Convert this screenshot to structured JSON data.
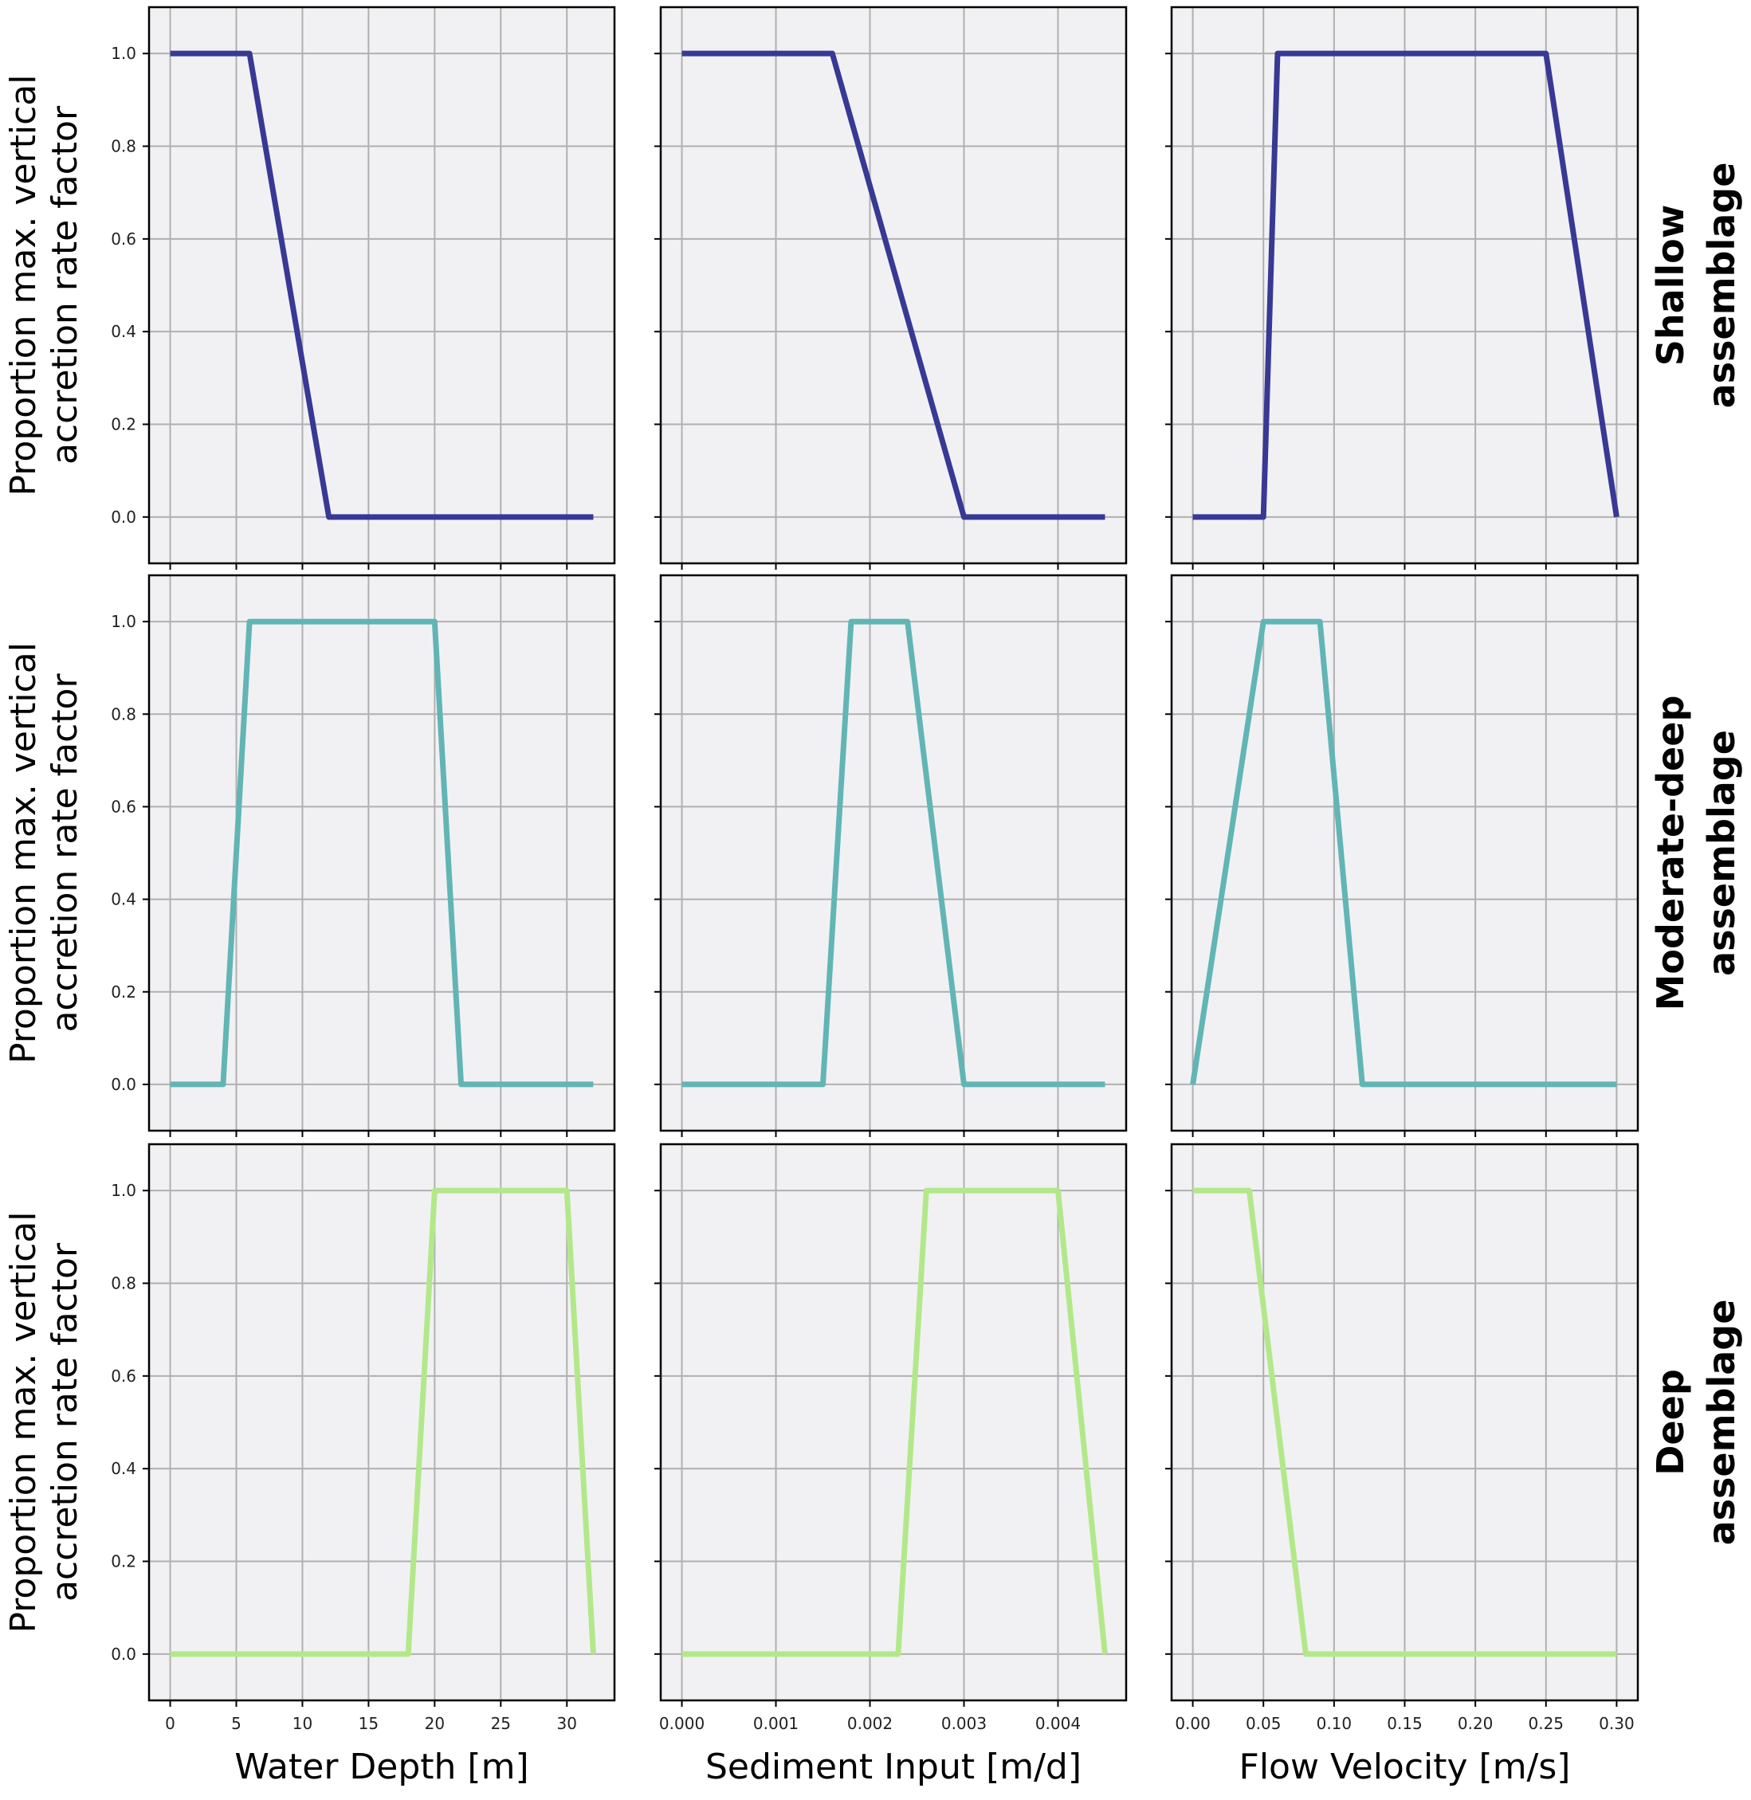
{
  "chart_data": [
    {
      "type": "line",
      "row": "Shallow assemblage",
      "xlabel": "Water Depth [m]",
      "ylabel": "Proportion max. vertical accretion rate factor",
      "color": "#383895",
      "x": [
        0,
        6,
        12,
        32
      ],
      "y": [
        1,
        1,
        0,
        0
      ],
      "xlim": [
        -1.6,
        33.6
      ],
      "ylim": [
        -0.1,
        1.1
      ]
    },
    {
      "type": "line",
      "row": "Shallow assemblage",
      "xlabel": "Sediment Input [m/d]",
      "color": "#383895",
      "x": [
        0,
        0.0016,
        0.003,
        0.0045
      ],
      "y": [
        1,
        1,
        0,
        0
      ],
      "xlim": [
        -0.000225,
        0.004725
      ],
      "ylim": [
        -0.1,
        1.1
      ]
    },
    {
      "type": "line",
      "row": "Shallow assemblage",
      "xlabel": "Flow Velocity [m/s]",
      "color": "#383895",
      "x": [
        0,
        0.05,
        0.06,
        0.25,
        0.3
      ],
      "y": [
        0,
        0,
        1,
        1,
        0
      ],
      "xlim": [
        -0.015,
        0.315
      ],
      "ylim": [
        -0.1,
        1.1
      ]
    },
    {
      "type": "line",
      "row": "Moderate-deep assemblage",
      "xlabel": "Water Depth [m]",
      "color": "#62b5b5",
      "x": [
        0,
        4,
        6,
        20,
        22,
        32
      ],
      "y": [
        0,
        0,
        1,
        1,
        0,
        0
      ],
      "xlim": [
        -1.6,
        33.6
      ],
      "ylim": [
        -0.1,
        1.1
      ]
    },
    {
      "type": "line",
      "row": "Moderate-deep assemblage",
      "xlabel": "Sediment Input [m/d]",
      "color": "#62b5b5",
      "x": [
        0,
        0.0015,
        0.0018,
        0.0024,
        0.003,
        0.0045
      ],
      "y": [
        0,
        0,
        1,
        1,
        0,
        0
      ],
      "xlim": [
        -0.000225,
        0.004725
      ],
      "ylim": [
        -0.1,
        1.1
      ]
    },
    {
      "type": "line",
      "row": "Moderate-deep assemblage",
      "xlabel": "Flow Velocity [m/s]",
      "color": "#62b5b5",
      "x": [
        0,
        0.05,
        0.09,
        0.12,
        0.3
      ],
      "y": [
        0,
        1,
        1,
        0,
        0
      ],
      "xlim": [
        -0.015,
        0.315
      ],
      "ylim": [
        -0.1,
        1.1
      ]
    },
    {
      "type": "line",
      "row": "Deep assemblage",
      "xlabel": "Water Depth [m]",
      "color": "#b3e88a",
      "x": [
        0,
        18,
        20,
        30,
        32
      ],
      "y": [
        0,
        0,
        1,
        1,
        0
      ],
      "xlim": [
        -1.6,
        33.6
      ],
      "ylim": [
        -0.1,
        1.1
      ]
    },
    {
      "type": "line",
      "row": "Deep assemblage",
      "xlabel": "Sediment Input [m/d]",
      "color": "#b3e88a",
      "x": [
        0,
        0.0023,
        0.0026,
        0.004,
        0.0045
      ],
      "y": [
        0,
        0,
        1,
        1,
        0
      ],
      "xlim": [
        -0.000225,
        0.004725
      ],
      "ylim": [
        -0.1,
        1.1
      ]
    },
    {
      "type": "line",
      "row": "Deep assemblage",
      "xlabel": "Flow Velocity [m/s]",
      "color": "#b3e88a",
      "x": [
        0,
        0.04,
        0.08,
        0.3
      ],
      "y": [
        1,
        1,
        0,
        0
      ],
      "xlim": [
        -0.015,
        0.315
      ],
      "ylim": [
        -0.1,
        1.1
      ]
    }
  ],
  "ylabel_lines": [
    "Proportion max. vertical",
    "accretion rate factor"
  ],
  "row_labels": [
    [
      "Shallow",
      "assemblage"
    ],
    [
      "Moderate-deep",
      "assemblage"
    ],
    [
      "Deep",
      "assemblage"
    ]
  ],
  "xlabels": [
    "Water Depth [m]",
    "Sediment Input [m/d]",
    "Flow Velocity [m/s]"
  ],
  "y_ticks": [
    "0.0",
    "0.2",
    "0.4",
    "0.6",
    "0.8",
    "1.0"
  ],
  "x_ticks": [
    [
      "0",
      "5",
      "10",
      "15",
      "20",
      "25",
      "30"
    ],
    [
      "0.000",
      "0.001",
      "0.002",
      "0.003",
      "0.004"
    ],
    [
      "0.00",
      "0.05",
      "0.10",
      "0.15",
      "0.20",
      "0.25",
      "0.30"
    ]
  ],
  "grid": true,
  "colors": {
    "panel_bg": "#f1f1f4",
    "grid": "#b0b0b0"
  }
}
